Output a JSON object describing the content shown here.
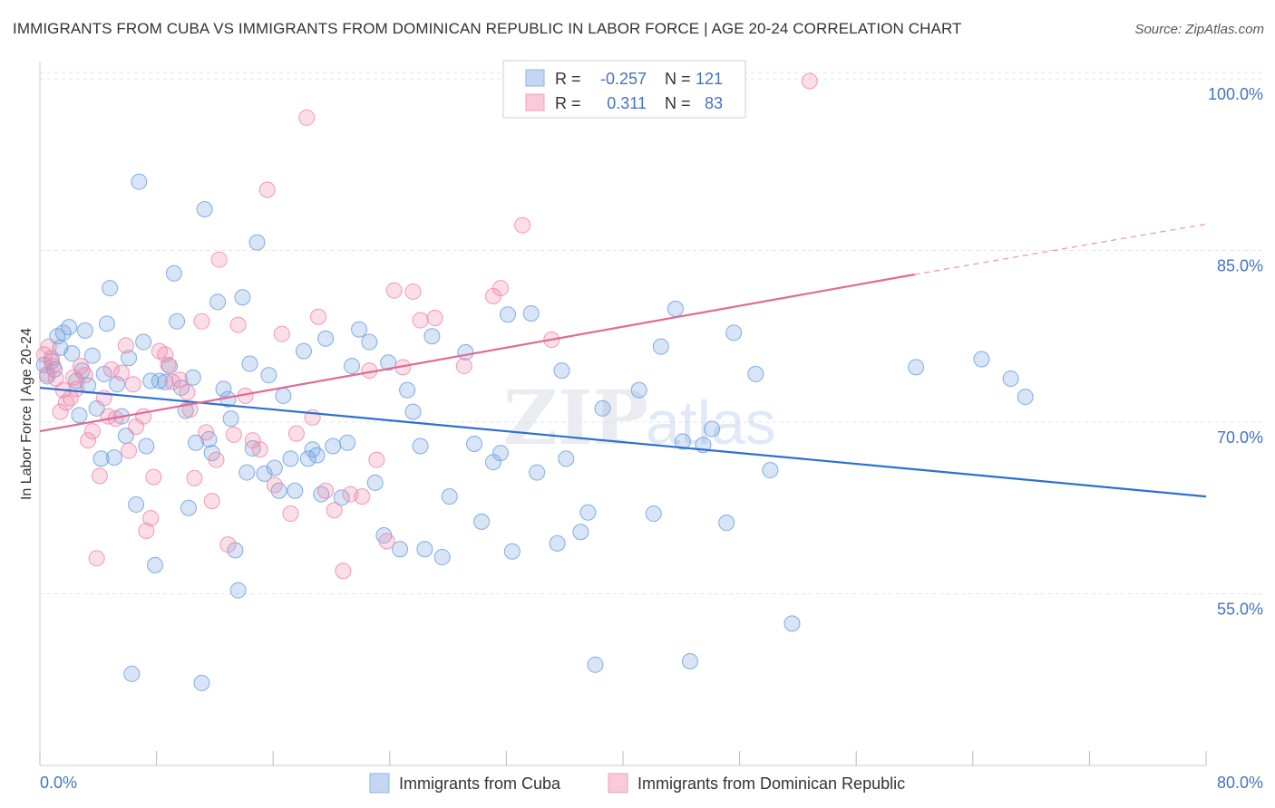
{
  "header": {
    "title": "IMMIGRANTS FROM CUBA VS IMMIGRANTS FROM DOMINICAN REPUBLIC IN LABOR FORCE | AGE 20-24 CORRELATION CHART",
    "source": "Source: ZipAtlas.com"
  },
  "watermark": "ZIPatlas",
  "legend": {
    "r_label": "R =",
    "n_label": "N =",
    "items": [
      {
        "name": "Immigrants from Cuba",
        "r": "-0.257",
        "n": "121",
        "color": "#6fa0e0"
      },
      {
        "name": "Immigrants from Dominican Republic",
        "r": "0.311",
        "n": "83",
        "color": "#f08aaa"
      }
    ]
  },
  "chart_data": {
    "type": "scatter",
    "title": "IMMIGRANTS FROM CUBA VS IMMIGRANTS FROM DOMINICAN REPUBLIC IN LABOR FORCE | AGE 20-24 CORRELATION CHART",
    "xlabel": "",
    "ylabel": "In Labor Force | Age 20-24",
    "xlim": [
      0,
      80
    ],
    "ylim": [
      40,
      101.5
    ],
    "x_tick_labels": [
      "0.0%",
      "80.0%"
    ],
    "y_ticks": [
      55,
      70,
      85,
      100
    ],
    "y_tick_labels": [
      "55.0%",
      "70.0%",
      "85.0%",
      "100.0%"
    ],
    "grid": true,
    "series": [
      {
        "name": "Immigrants from Cuba",
        "color": "#6fa0e0",
        "line_color": "#2f6fd0",
        "trend": {
          "x0": 0,
          "y0": 73.0,
          "x1": 80,
          "y1": 63.5
        },
        "points": [
          [
            0.3,
            75
          ],
          [
            0.5,
            74
          ],
          [
            0.8,
            75.3
          ],
          [
            1,
            74.6
          ],
          [
            1.2,
            77.5
          ],
          [
            1.4,
            76.5
          ],
          [
            1.6,
            77.8
          ],
          [
            2,
            78.3
          ],
          [
            2.2,
            76
          ],
          [
            2.5,
            73.6
          ],
          [
            2.7,
            70.6
          ],
          [
            2.9,
            74.5
          ],
          [
            3.1,
            78
          ],
          [
            3.3,
            73.2
          ],
          [
            3.6,
            75.8
          ],
          [
            3.9,
            71.2
          ],
          [
            4.2,
            66.8
          ],
          [
            4.4,
            74.2
          ],
          [
            4.6,
            78.6
          ],
          [
            4.8,
            81.7
          ],
          [
            5.1,
            66.9
          ],
          [
            5.3,
            73.3
          ],
          [
            5.6,
            70.5
          ],
          [
            5.9,
            68.8
          ],
          [
            6.1,
            75.6
          ],
          [
            6.3,
            48
          ],
          [
            6.6,
            62.8
          ],
          [
            6.8,
            91
          ],
          [
            7.1,
            77
          ],
          [
            7.3,
            67.9
          ],
          [
            7.6,
            73.6
          ],
          [
            7.9,
            57.5
          ],
          [
            8.2,
            73.6
          ],
          [
            8.6,
            73.5
          ],
          [
            8.9,
            74.9
          ],
          [
            9.2,
            83
          ],
          [
            9.4,
            78.8
          ],
          [
            9.7,
            73
          ],
          [
            10,
            71
          ],
          [
            10.2,
            62.5
          ],
          [
            10.5,
            73.9
          ],
          [
            10.7,
            68.2
          ],
          [
            11.1,
            47.2
          ],
          [
            11.3,
            88.6
          ],
          [
            11.6,
            68.5
          ],
          [
            11.8,
            67.3
          ],
          [
            12.2,
            80.5
          ],
          [
            12.6,
            72.9
          ],
          [
            12.9,
            72
          ],
          [
            13.1,
            70.3
          ],
          [
            13.4,
            58.8
          ],
          [
            13.6,
            55.3
          ],
          [
            13.9,
            80.9
          ],
          [
            14.2,
            65.6
          ],
          [
            14.4,
            75.1
          ],
          [
            14.6,
            67.7
          ],
          [
            14.9,
            85.7
          ],
          [
            15.4,
            65.5
          ],
          [
            15.7,
            74.1
          ],
          [
            16.1,
            66
          ],
          [
            16.4,
            64
          ],
          [
            16.7,
            72.3
          ],
          [
            17.2,
            66.8
          ],
          [
            17.5,
            64
          ],
          [
            18.1,
            76.2
          ],
          [
            18.4,
            66.8
          ],
          [
            18.7,
            67.6
          ],
          [
            19,
            67.1
          ],
          [
            19.3,
            63.7
          ],
          [
            19.6,
            77.3
          ],
          [
            20.1,
            67.9
          ],
          [
            20.7,
            63.4
          ],
          [
            21.1,
            68.2
          ],
          [
            21.4,
            74.9
          ],
          [
            21.9,
            78.1
          ],
          [
            22.6,
            77
          ],
          [
            23,
            64.7
          ],
          [
            23.6,
            60.1
          ],
          [
            23.9,
            75.2
          ],
          [
            24.7,
            58.9
          ],
          [
            25.2,
            72.8
          ],
          [
            25.6,
            70.9
          ],
          [
            26.1,
            67.9
          ],
          [
            26.4,
            58.9
          ],
          [
            26.9,
            77.5
          ],
          [
            27.6,
            58.2
          ],
          [
            28.1,
            63.5
          ],
          [
            29.2,
            76.1
          ],
          [
            29.8,
            68.1
          ],
          [
            30.3,
            61.3
          ],
          [
            31.1,
            66.5
          ],
          [
            31.6,
            67.3
          ],
          [
            32.1,
            79.4
          ],
          [
            32.4,
            58.7
          ],
          [
            33.7,
            79.5
          ],
          [
            34.1,
            65.6
          ],
          [
            35.5,
            59.4
          ],
          [
            35.8,
            74.5
          ],
          [
            36.1,
            66.8
          ],
          [
            37.1,
            60.4
          ],
          [
            37.6,
            62.1
          ],
          [
            38.1,
            48.8
          ],
          [
            38.6,
            71.2
          ],
          [
            41.1,
            72.8
          ],
          [
            42.1,
            62
          ],
          [
            42.6,
            76.6
          ],
          [
            43.6,
            79.9
          ],
          [
            44.1,
            68.3
          ],
          [
            44.6,
            49.1
          ],
          [
            45.5,
            68
          ],
          [
            46.1,
            69.4
          ],
          [
            47.1,
            61.2
          ],
          [
            47.6,
            77.8
          ],
          [
            49.1,
            74.2
          ],
          [
            50.1,
            65.8
          ],
          [
            51.6,
            52.4
          ],
          [
            60.1,
            74.8
          ],
          [
            64.6,
            75.5
          ],
          [
            66.6,
            73.8
          ],
          [
            67.6,
            72.2
          ]
        ]
      },
      {
        "name": "Immigrants from Dominican Republic",
        "color": "#f08aaa",
        "line_color": "#e06b94",
        "trend": {
          "x0": 0,
          "y0": 69.2,
          "x1": 60,
          "y1": 82.9
        },
        "trend_extension": {
          "x0": 60,
          "y0": 82.9,
          "x1": 80,
          "y1": 87.3
        },
        "points": [
          [
            0.3,
            75.9
          ],
          [
            0.5,
            74.2
          ],
          [
            0.6,
            76.6
          ],
          [
            0.8,
            75.6
          ],
          [
            0.9,
            74.9
          ],
          [
            1.1,
            73.8
          ],
          [
            1.4,
            70.9
          ],
          [
            1.6,
            72.8
          ],
          [
            1.8,
            71.7
          ],
          [
            2.1,
            72.1
          ],
          [
            2.3,
            73.9
          ],
          [
            2.5,
            72.9
          ],
          [
            2.8,
            74.9
          ],
          [
            3.1,
            74.1
          ],
          [
            3.3,
            68.4
          ],
          [
            3.6,
            69.2
          ],
          [
            3.9,
            58.1
          ],
          [
            4.1,
            65.3
          ],
          [
            4.4,
            72.1
          ],
          [
            4.7,
            70.5
          ],
          [
            4.9,
            74.6
          ],
          [
            5.2,
            70.3
          ],
          [
            5.6,
            74.3
          ],
          [
            5.9,
            76.7
          ],
          [
            6.1,
            67.5
          ],
          [
            6.4,
            73.3
          ],
          [
            6.6,
            69.6
          ],
          [
            7.1,
            70.5
          ],
          [
            7.3,
            60.5
          ],
          [
            7.6,
            61.6
          ],
          [
            7.8,
            65.2
          ],
          [
            8.2,
            76.2
          ],
          [
            8.6,
            75.9
          ],
          [
            8.8,
            75
          ],
          [
            9.1,
            73.5
          ],
          [
            9.6,
            73.7
          ],
          [
            10.1,
            72.6
          ],
          [
            10.3,
            71.1
          ],
          [
            10.6,
            65.1
          ],
          [
            11.1,
            78.8
          ],
          [
            11.4,
            69.1
          ],
          [
            11.8,
            63.1
          ],
          [
            12.1,
            66.7
          ],
          [
            12.3,
            84.2
          ],
          [
            12.9,
            59.3
          ],
          [
            13.3,
            68.9
          ],
          [
            13.6,
            78.5
          ],
          [
            14.1,
            72.3
          ],
          [
            14.6,
            68.4
          ],
          [
            15.1,
            67.6
          ],
          [
            15.6,
            90.3
          ],
          [
            16.1,
            64.5
          ],
          [
            16.6,
            77.7
          ],
          [
            17.2,
            62
          ],
          [
            17.6,
            69
          ],
          [
            18.3,
            96.6
          ],
          [
            18.7,
            70.4
          ],
          [
            19.1,
            79.2
          ],
          [
            19.6,
            64
          ],
          [
            20.2,
            62.3
          ],
          [
            20.8,
            57
          ],
          [
            21.3,
            63.7
          ],
          [
            22.1,
            63.5
          ],
          [
            22.6,
            74.5
          ],
          [
            23.1,
            66.7
          ],
          [
            23.8,
            59.6
          ],
          [
            24.3,
            81.5
          ],
          [
            24.9,
            74.8
          ],
          [
            25.6,
            81.4
          ],
          [
            26.1,
            78.9
          ],
          [
            27.1,
            79.1
          ],
          [
            29.1,
            74.9
          ],
          [
            31.1,
            81
          ],
          [
            31.6,
            81.7
          ],
          [
            33.1,
            87.2
          ],
          [
            35.1,
            77.2
          ],
          [
            52.8,
            99.8
          ]
        ]
      }
    ]
  }
}
